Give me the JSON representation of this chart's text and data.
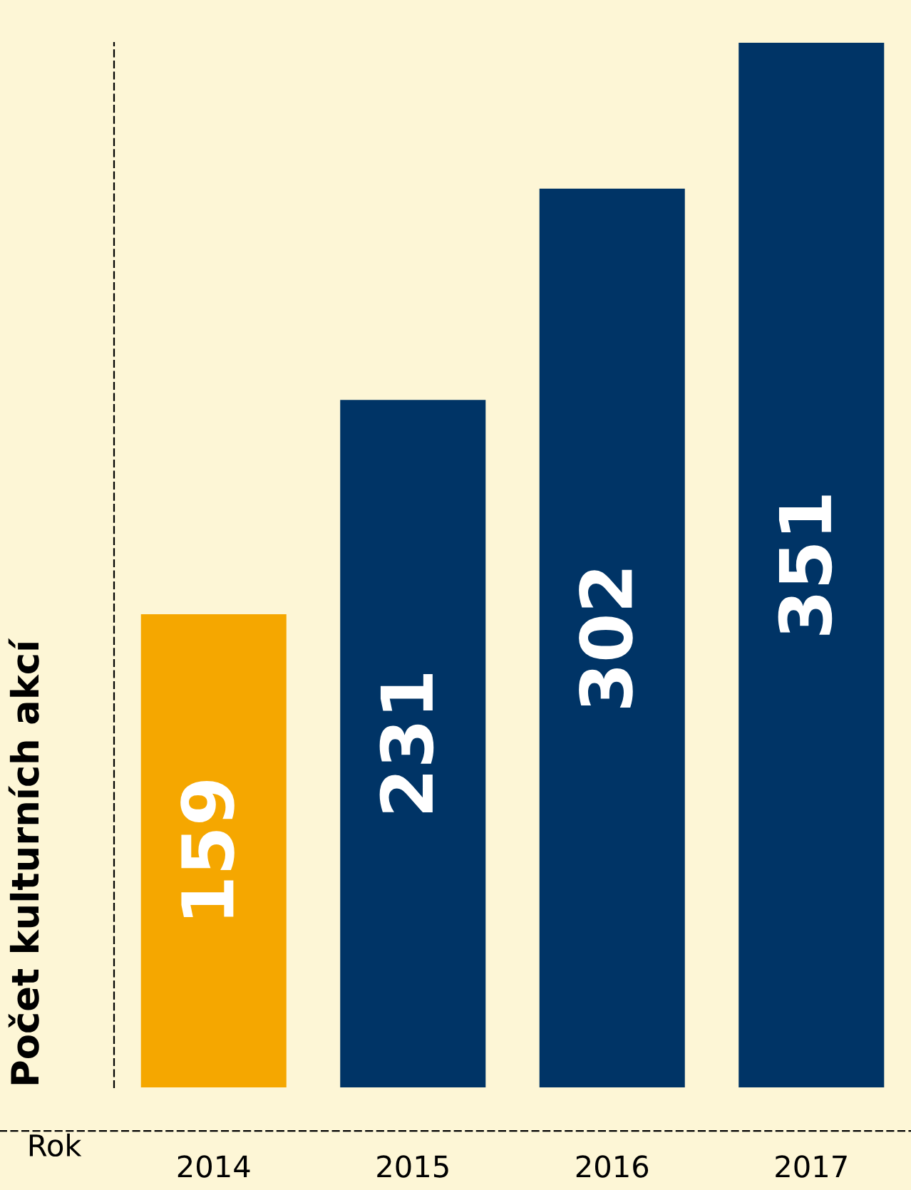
{
  "chart_data": {
    "type": "bar",
    "xlabel": "Rok",
    "ylabel": "Počet kulturních akcí",
    "categories": [
      "2014",
      "2015",
      "2016",
      "2017"
    ],
    "values": [
      159,
      231,
      302,
      351
    ],
    "colors": [
      "#f5a700",
      "#003466",
      "#003466",
      "#003466"
    ],
    "data_labels": true,
    "grid": false,
    "legend": false,
    "tick_labels": "x"
  }
}
